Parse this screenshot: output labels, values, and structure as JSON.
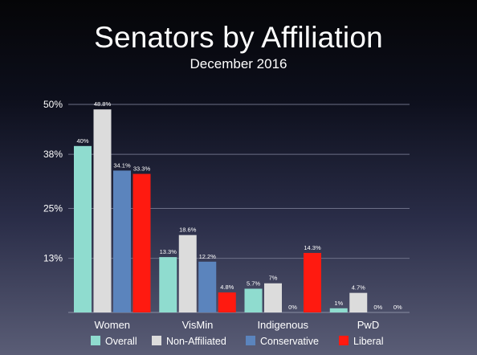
{
  "chart_data": {
    "type": "bar",
    "title": "Senators by Affiliation",
    "subtitle": "December 2016",
    "xlabel": "",
    "ylabel": "",
    "categories": [
      "Women",
      "VisMin",
      "Indigenous",
      "PwD"
    ],
    "ylim": [
      0,
      50
    ],
    "yticks": [
      13,
      25,
      38,
      50
    ],
    "ytick_labels": [
      "13%",
      "25%",
      "38%",
      "50%"
    ],
    "grid": true,
    "legend_position": "bottom",
    "series": [
      {
        "name": "Overall",
        "color": "#8fdccf",
        "values": [
          40,
          13.3,
          5.7,
          1
        ],
        "labels": [
          "40%",
          "13.3%",
          "5.7%",
          "1%"
        ]
      },
      {
        "name": "Non-Affiliated",
        "color": "#dcdcdc",
        "values": [
          48.8,
          18.6,
          7,
          4.7
        ],
        "labels": [
          "48.8%",
          "18.6%",
          "7%",
          "4.7%"
        ]
      },
      {
        "name": "Conservative",
        "color": "#5b84bd",
        "values": [
          34.1,
          12.2,
          0,
          0
        ],
        "labels": [
          "34.1%",
          "12.2%",
          "0%",
          "0%"
        ]
      },
      {
        "name": "Liberal",
        "color": "#ff1a10",
        "values": [
          33.3,
          4.8,
          14.3,
          0
        ],
        "labels": [
          "33.3%",
          "4.8%",
          "14.3%",
          "0%"
        ]
      }
    ]
  }
}
